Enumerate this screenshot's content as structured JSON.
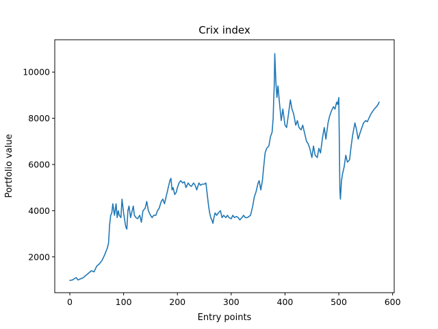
{
  "chart_data": {
    "type": "line",
    "title": "Crix index",
    "xlabel": "Entry points",
    "ylabel": "Portfolio value",
    "xlim": [
      -28,
      603
    ],
    "ylim": [
      450,
      11400
    ],
    "xticks": [
      0,
      100,
      200,
      300,
      400,
      500,
      600
    ],
    "yticks": [
      2000,
      4000,
      6000,
      8000,
      10000
    ],
    "grid": false,
    "legend": "none",
    "series": [
      {
        "color": "#1f77b4",
        "x": [
          0,
          5,
          10,
          12,
          15,
          20,
          25,
          30,
          35,
          40,
          45,
          50,
          55,
          60,
          65,
          70,
          72,
          74,
          76,
          78,
          80,
          83,
          86,
          88,
          90,
          92,
          95,
          97,
          100,
          102,
          104,
          106,
          108,
          110,
          113,
          116,
          118,
          120,
          123,
          126,
          130,
          133,
          136,
          140,
          143,
          146,
          150,
          153,
          156,
          160,
          163,
          166,
          170,
          173,
          176,
          180,
          183,
          186,
          188,
          190,
          192,
          195,
          198,
          200,
          203,
          206,
          210,
          213,
          216,
          220,
          223,
          226,
          230,
          233,
          236,
          240,
          243,
          246,
          250,
          253,
          255,
          258,
          260,
          262,
          264,
          266,
          268,
          270,
          273,
          276,
          280,
          283,
          286,
          290,
          293,
          296,
          300,
          303,
          306,
          310,
          313,
          316,
          320,
          323,
          326,
          330,
          333,
          336,
          340,
          343,
          346,
          348,
          350,
          352,
          355,
          358,
          360,
          363,
          366,
          370,
          373,
          376,
          378,
          379,
          380,
          381,
          382,
          383,
          385,
          387,
          390,
          393,
          396,
          400,
          403,
          406,
          410,
          413,
          416,
          420,
          423,
          426,
          430,
          433,
          436,
          440,
          443,
          446,
          450,
          453,
          456,
          460,
          463,
          466,
          470,
          473,
          476,
          480,
          483,
          486,
          490,
          493,
          496,
          498,
          500,
          501,
          502,
          503,
          505,
          507,
          510,
          513,
          516,
          520,
          523,
          526,
          530,
          533,
          536,
          540,
          543,
          546,
          550,
          553,
          556,
          560,
          563,
          566,
          570,
          573,
          575
        ],
        "y": [
          980,
          1000,
          1080,
          1100,
          1000,
          1050,
          1100,
          1200,
          1300,
          1400,
          1350,
          1600,
          1700,
          1850,
          2100,
          2400,
          2600,
          3400,
          3800,
          3900,
          4300,
          3800,
          4300,
          3700,
          4000,
          3800,
          3700,
          4500,
          3900,
          3600,
          3300,
          3200,
          4000,
          4200,
          3700,
          4000,
          4200,
          3800,
          3700,
          3650,
          3800,
          3500,
          4000,
          4100,
          4400,
          4000,
          3800,
          3700,
          3800,
          3800,
          4000,
          4100,
          4400,
          4500,
          4300,
          4700,
          5000,
          5300,
          5400,
          4900,
          5000,
          4700,
          4800,
          5000,
          5200,
          5300,
          5200,
          5250,
          5000,
          5200,
          5100,
          5050,
          5200,
          5100,
          4900,
          5200,
          5100,
          5150,
          5150,
          5200,
          4800,
          4200,
          3900,
          3700,
          3600,
          3450,
          3700,
          3900,
          3800,
          3900,
          4000,
          3700,
          3800,
          3700,
          3800,
          3700,
          3650,
          3800,
          3700,
          3750,
          3700,
          3600,
          3700,
          3800,
          3700,
          3700,
          3750,
          3800,
          4200,
          4600,
          4800,
          5000,
          5200,
          5300,
          4900,
          5300,
          5800,
          6500,
          6700,
          6800,
          7200,
          7400,
          8000,
          8800,
          9400,
          10800,
          10200,
          9600,
          8900,
          9400,
          8600,
          7900,
          8400,
          7700,
          7600,
          8100,
          8800,
          8400,
          8200,
          7700,
          7900,
          7600,
          7500,
          7700,
          7400,
          7000,
          6900,
          6700,
          6300,
          6800,
          6400,
          6300,
          6700,
          6500,
          7200,
          7600,
          7100,
          7800,
          8100,
          8300,
          8500,
          8400,
          8700,
          8600,
          8900,
          7000,
          4900,
          4500,
          5300,
          5600,
          5900,
          6400,
          6100,
          6200,
          6800,
          7300,
          7800,
          7500,
          7100,
          7400,
          7600,
          7800,
          7900,
          7850,
          8000,
          8200,
          8300,
          8400,
          8500,
          8600,
          8700
        ]
      }
    ]
  }
}
